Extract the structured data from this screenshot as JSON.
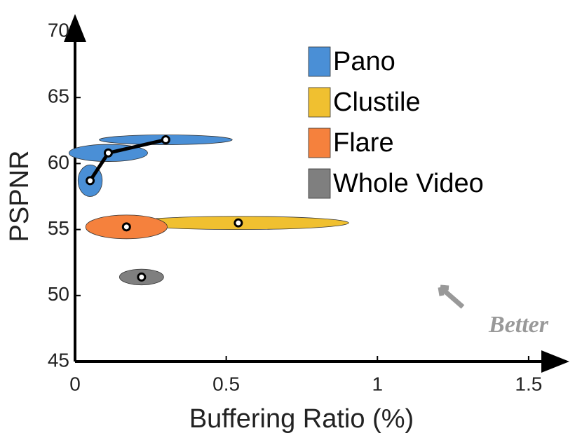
{
  "chart_data": {
    "type": "scatter",
    "xlabel": "Buffering Ratio (%)",
    "ylabel": "PSPNR",
    "xlim": [
      0,
      1.6
    ],
    "ylim": [
      45,
      70
    ],
    "xticks": [
      0,
      0.5,
      1,
      1.5
    ],
    "yticks": [
      45,
      50,
      55,
      60,
      65,
      70
    ],
    "legend": "upper right",
    "annotation": "Better",
    "series": [
      {
        "name": "Pano",
        "color": "#4a8fd6",
        "line": true,
        "x": [
          0.05,
          0.11,
          0.3
        ],
        "y": [
          58.7,
          60.8,
          61.8
        ],
        "x_err": [
          0.04,
          0.13,
          0.22
        ],
        "y_err": [
          1.2,
          0.65,
          0.37
        ]
      },
      {
        "name": "Clustile",
        "color": "#f0c030",
        "line": false,
        "x": [
          0.54
        ],
        "y": [
          55.5
        ],
        "x_err": [
          0.365
        ],
        "y_err": [
          0.5
        ]
      },
      {
        "name": "Flare",
        "color": "#f5813d",
        "line": false,
        "x": [
          0.17
        ],
        "y": [
          55.2
        ],
        "x_err": [
          0.135
        ],
        "y_err": [
          0.9
        ]
      },
      {
        "name": "Whole Video",
        "color": "#7f7f7f",
        "line": false,
        "x": [
          0.22
        ],
        "y": [
          51.4
        ],
        "x_err": [
          0.073
        ],
        "y_err": [
          0.6
        ]
      }
    ]
  }
}
